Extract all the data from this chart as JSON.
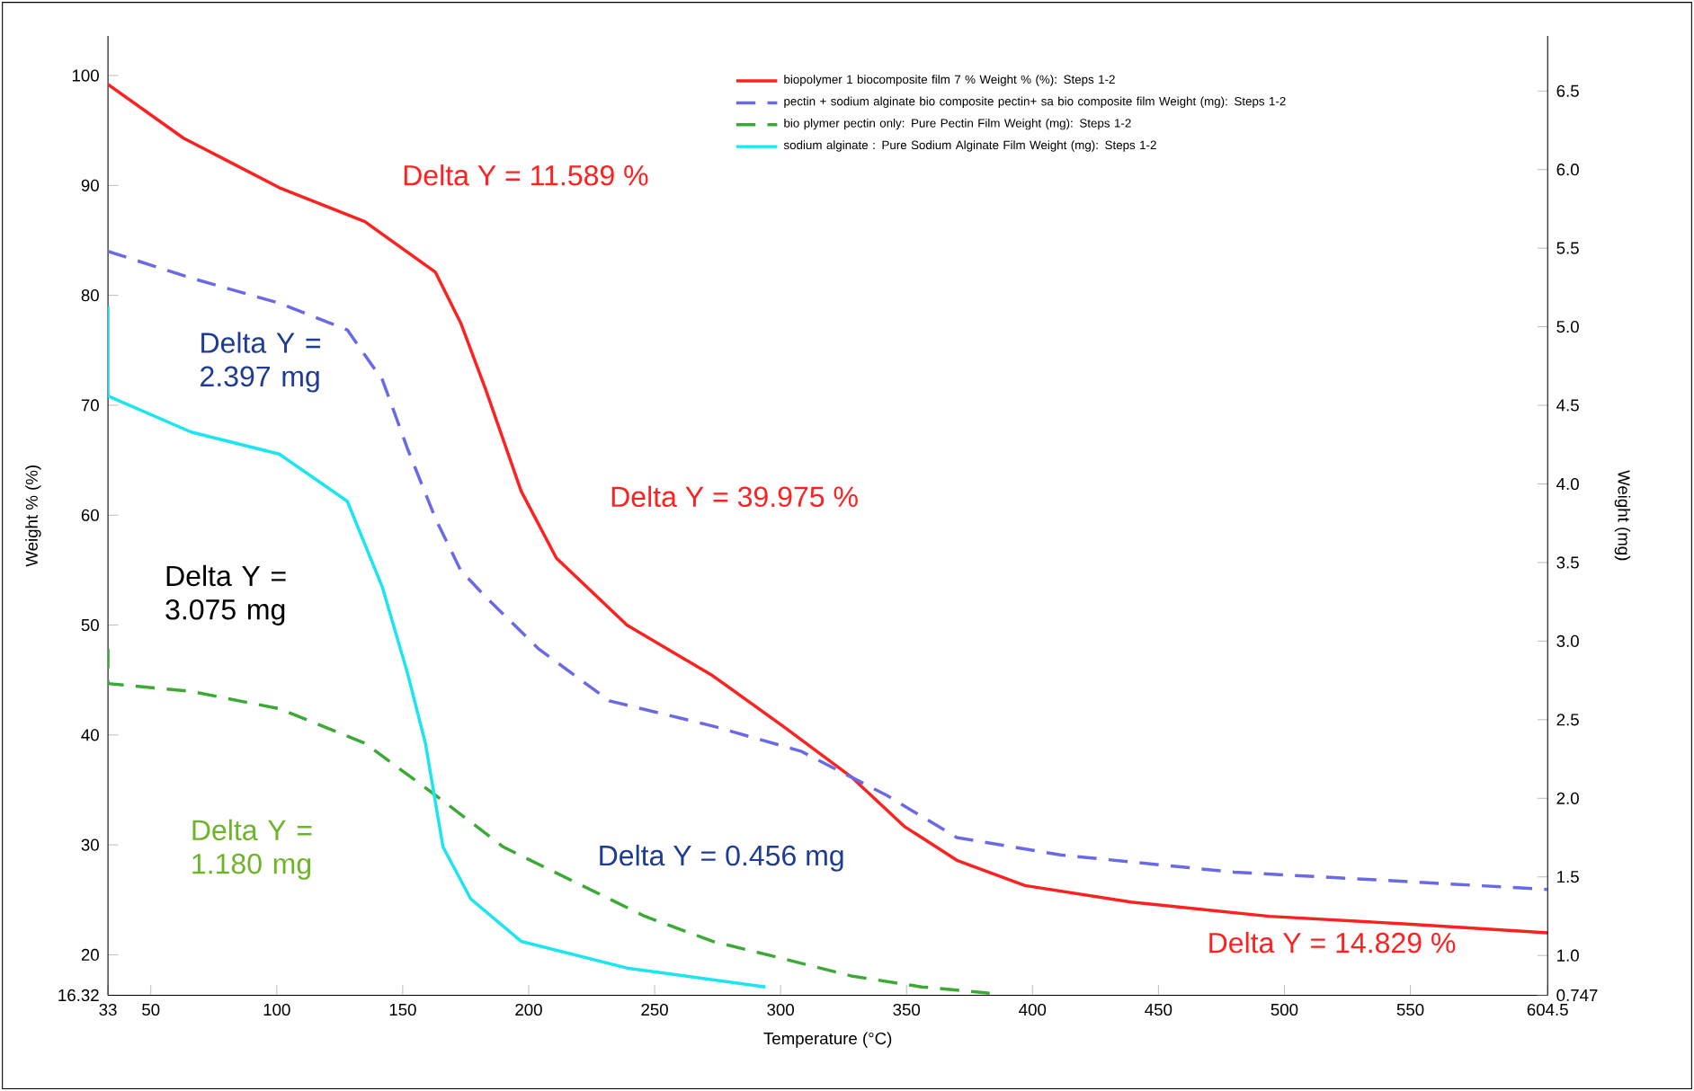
{
  "chart_data": {
    "type": "line",
    "xlabel": "Temperature (°C)",
    "ylabel": "Weight % (%)",
    "y2label": "Weight (mg)",
    "xlim": [
      33,
      604.5
    ],
    "xticks": [
      33,
      50,
      100,
      150,
      200,
      250,
      300,
      350,
      400,
      450,
      500,
      550,
      604.5
    ],
    "ylim": [
      16.32,
      103.6
    ],
    "yticks": [
      16.32,
      20,
      30,
      40,
      50,
      60,
      70,
      80,
      90,
      100
    ],
    "y2lim": [
      0.747,
      6.85
    ],
    "y2ticks": [
      0.747,
      {
        "value": 1.0,
        "label": "1.0"
      },
      1.5,
      {
        "value": 2.0,
        "label": "2.0"
      },
      2.5,
      {
        "value": 3.0,
        "label": "3.0"
      },
      3.5,
      {
        "value": 4.0,
        "label": "4.0"
      },
      4.5,
      {
        "value": 5.0,
        "label": "5.0"
      },
      5.5,
      {
        "value": 6.0,
        "label": "6.0"
      },
      6.5
    ],
    "legend": "top right",
    "series": [
      {
        "name": "biopolymer 1 biocomposite film 7 % Weight % (%): Steps 1-2",
        "color": "#ff2020",
        "line_style": "solid",
        "x": [
          33,
          63,
          101,
          135,
          163,
          173,
          183,
          197,
          211,
          239,
          273,
          301,
          328,
          349,
          370,
          397,
          439,
          494,
          549,
          604.5
        ],
        "values": [
          99.2,
          94.3,
          89.8,
          86.7,
          82.1,
          77.5,
          71.4,
          62.2,
          56.1,
          50.0,
          45.4,
          40.8,
          36.2,
          31.7,
          28.6,
          26.3,
          24.8,
          23.5,
          22.8,
          22.0
        ]
      },
      {
        "name": "pectin + sodium alginate bio composite pectin+ sa bio composite film Weight (mg): Steps 1-2",
        "color": "#6a6ae8",
        "line_style": "dashed",
        "axis": "y2",
        "x": [
          33,
          66,
          101,
          128,
          142,
          152,
          163,
          173,
          183,
          204,
          232,
          273,
          308,
          342,
          370,
          411,
          480,
          549,
          604.5
        ],
        "values": [
          5.48,
          5.31,
          5.15,
          4.98,
          4.66,
          4.22,
          3.78,
          3.45,
          3.28,
          2.95,
          2.62,
          2.46,
          2.3,
          2.02,
          1.75,
          1.64,
          1.53,
          1.47,
          1.42
        ]
      },
      {
        "name": "bio plymer pectin only: Pure Pectin Film Weight (mg): Steps 1-2",
        "color": "#3aaa35",
        "line_style": "dashed",
        "axis": "y2",
        "x": [
          33,
          33,
          66,
          101,
          135,
          163,
          190,
          218,
          246,
          273,
          301,
          328,
          356,
          383
        ],
        "values": [
          2.95,
          2.73,
          2.68,
          2.57,
          2.35,
          2.02,
          1.69,
          1.47,
          1.25,
          1.09,
          0.98,
          0.87,
          0.8,
          0.76
        ]
      },
      {
        "name": "sodium alginate : Pure Sodium Alginate Film Weight (mg): Steps 1-2",
        "color": "#19e6f0",
        "line_style": "solid",
        "axis": "y2",
        "x": [
          33,
          33,
          66,
          101,
          128,
          142,
          152,
          159,
          166,
          177,
          197,
          239,
          294
        ],
        "values": [
          5.13,
          4.56,
          4.33,
          4.19,
          3.89,
          3.34,
          2.79,
          2.35,
          1.69,
          1.36,
          1.09,
          0.92,
          0.8
        ]
      }
    ],
    "annotations": [
      "Delta Y = 11.589 %",
      "Delta Y = 2.397 mg",
      "Delta Y = 39.975 %",
      "Delta Y = 3.075 mg",
      "Delta Y = 1.180 mg",
      "Delta Y = 0.456 mg",
      "Delta Y = 14.829 %"
    ]
  }
}
